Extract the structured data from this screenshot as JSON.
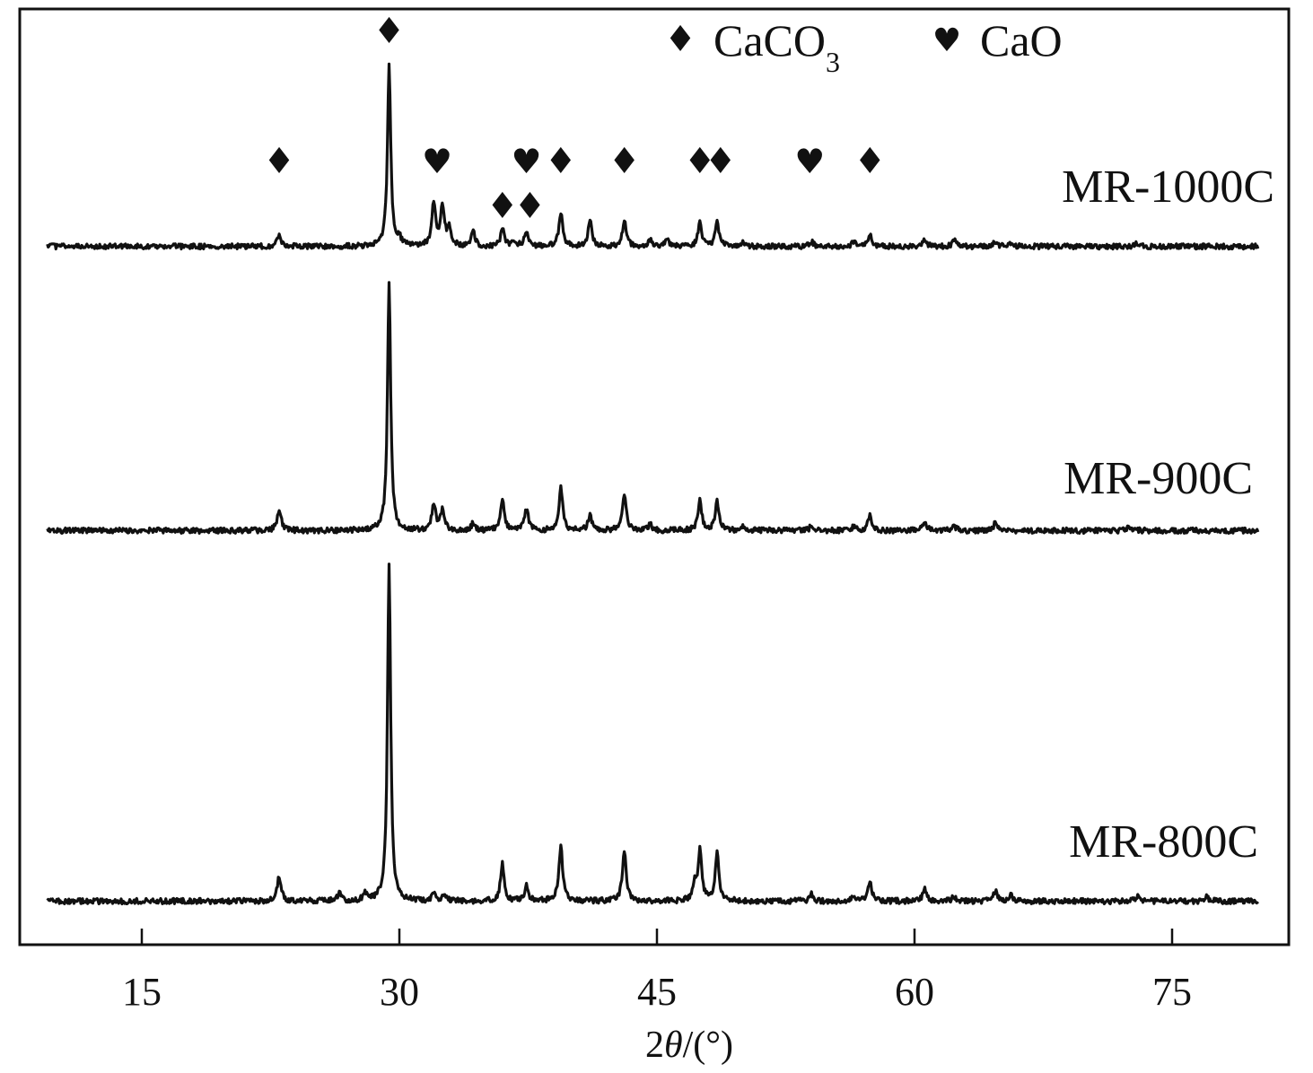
{
  "chart_data": {
    "type": "line",
    "title": "",
    "xlabel": "2θ/(°)",
    "xlabel_parts": {
      "prefix": "2",
      "italic": "θ",
      "suffix": "/(°)"
    },
    "ylabel": "",
    "xlim": [
      8.5,
      83
    ],
    "x_ticks": [
      15,
      30,
      45,
      60,
      75
    ],
    "y_ticks": [],
    "grid": false,
    "legend": {
      "placement": "top-right",
      "entries": [
        {
          "glyph": "♦",
          "icon": "diamond-icon",
          "label": "CaCO",
          "subscript": "3",
          "phase": "CaCO3"
        },
        {
          "glyph": "♥",
          "icon": "heart-icon",
          "label": "CaO",
          "subscript": "",
          "phase": "CaO"
        }
      ]
    },
    "series": [
      {
        "name": "MR-1000C",
        "baseline": 0.02,
        "peaks": [
          [
            23.0,
            0.05
          ],
          [
            29.4,
            0.78
          ],
          [
            30.0,
            0.03
          ],
          [
            32.0,
            0.18
          ],
          [
            32.5,
            0.17
          ],
          [
            32.9,
            0.08
          ],
          [
            34.3,
            0.06
          ],
          [
            36.0,
            0.07
          ],
          [
            36.7,
            0.025
          ],
          [
            37.4,
            0.06
          ],
          [
            39.4,
            0.14
          ],
          [
            41.1,
            0.11
          ],
          [
            43.1,
            0.11
          ],
          [
            44.6,
            0.03
          ],
          [
            45.6,
            0.03
          ],
          [
            47.5,
            0.1
          ],
          [
            48.5,
            0.1
          ],
          [
            50.0,
            0.015
          ],
          [
            54.0,
            0.02
          ],
          [
            56.5,
            0.025
          ],
          [
            57.4,
            0.05
          ],
          [
            60.6,
            0.03
          ],
          [
            62.3,
            0.025
          ],
          [
            64.7,
            0.02
          ],
          [
            65.6,
            0.015
          ],
          [
            73.0,
            0.015
          ]
        ]
      },
      {
        "name": "MR-900C",
        "baseline": 0.02,
        "peaks": [
          [
            23.0,
            0.09
          ],
          [
            29.4,
            1.0
          ],
          [
            32.0,
            0.11
          ],
          [
            32.5,
            0.08
          ],
          [
            34.3,
            0.03
          ],
          [
            36.0,
            0.12
          ],
          [
            37.4,
            0.09
          ],
          [
            39.4,
            0.17
          ],
          [
            41.1,
            0.06
          ],
          [
            43.1,
            0.15
          ],
          [
            44.6,
            0.025
          ],
          [
            47.5,
            0.12
          ],
          [
            48.5,
            0.12
          ],
          [
            50.0,
            0.02
          ],
          [
            54.0,
            0.02
          ],
          [
            56.5,
            0.02
          ],
          [
            57.4,
            0.06
          ],
          [
            60.6,
            0.04
          ],
          [
            62.3,
            0.02
          ],
          [
            64.7,
            0.03
          ],
          [
            72.5,
            0.02
          ]
        ]
      },
      {
        "name": "MR-800C",
        "baseline": 0.02,
        "peaks": [
          [
            23.0,
            0.1
          ],
          [
            26.5,
            0.03
          ],
          [
            28.0,
            0.03
          ],
          [
            29.4,
            1.35
          ],
          [
            32.0,
            0.03
          ],
          [
            32.6,
            0.02
          ],
          [
            36.0,
            0.15
          ],
          [
            37.4,
            0.06
          ],
          [
            39.4,
            0.22
          ],
          [
            43.1,
            0.21
          ],
          [
            47.2,
            0.06
          ],
          [
            47.5,
            0.2
          ],
          [
            48.5,
            0.19
          ],
          [
            54.0,
            0.03
          ],
          [
            56.5,
            0.02
          ],
          [
            57.4,
            0.08
          ],
          [
            60.6,
            0.05
          ],
          [
            62.3,
            0.02
          ],
          [
            64.7,
            0.04
          ],
          [
            65.6,
            0.03
          ],
          [
            73.0,
            0.02
          ],
          [
            77.0,
            0.02
          ]
        ]
      }
    ],
    "phase_markers": [
      {
        "glyph": "♦",
        "icon": "diamond-icon",
        "phase": "CaCO3",
        "x": 29.4,
        "row": "top"
      },
      {
        "glyph": "♦",
        "icon": "diamond-icon",
        "phase": "CaCO3",
        "x": 23.0,
        "row": "upper"
      },
      {
        "glyph": "♥",
        "icon": "heart-icon",
        "phase": "CaO",
        "x": 32.2,
        "row": "upper"
      },
      {
        "glyph": "♥",
        "icon": "heart-icon",
        "phase": "CaO",
        "x": 37.4,
        "row": "upper"
      },
      {
        "glyph": "♦",
        "icon": "diamond-icon",
        "phase": "CaCO3",
        "x": 39.4,
        "row": "upper"
      },
      {
        "glyph": "♦",
        "icon": "diamond-icon",
        "phase": "CaCO3",
        "x": 43.1,
        "row": "upper"
      },
      {
        "glyph": "♦",
        "icon": "diamond-icon",
        "phase": "CaCO3",
        "x": 47.5,
        "row": "upper"
      },
      {
        "glyph": "♦",
        "icon": "diamond-icon",
        "phase": "CaCO3",
        "x": 48.7,
        "row": "upper"
      },
      {
        "glyph": "♥",
        "icon": "heart-icon",
        "phase": "CaO",
        "x": 53.9,
        "row": "upper"
      },
      {
        "glyph": "♦",
        "icon": "diamond-icon",
        "phase": "CaCO3",
        "x": 57.4,
        "row": "upper"
      },
      {
        "glyph": "♦",
        "icon": "diamond-icon",
        "phase": "CaCO3",
        "x": 36.0,
        "row": "lower"
      },
      {
        "glyph": "♦",
        "icon": "diamond-icon",
        "phase": "CaCO3",
        "x": 37.6,
        "row": "lower"
      }
    ]
  }
}
